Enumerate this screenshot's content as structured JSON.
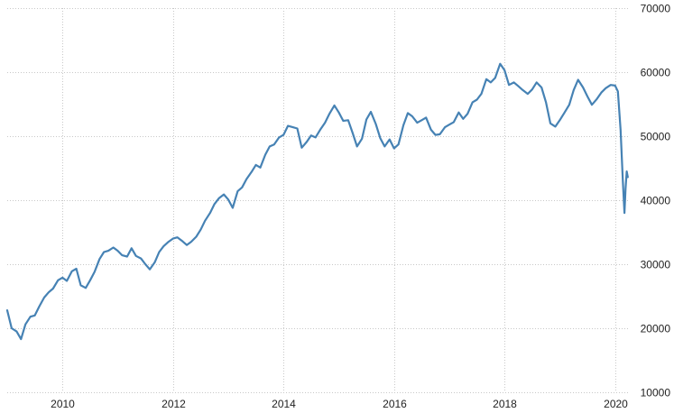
{
  "chart_data": {
    "type": "line",
    "title": "",
    "xlabel": "",
    "ylabel": "",
    "grid": true,
    "legend": "none",
    "y_axis_side": "right",
    "x_type": "year",
    "xlim": [
      2009.0,
      2020.25
    ],
    "ylim": [
      10000,
      70000
    ],
    "x_ticks": [
      2010,
      2012,
      2014,
      2016,
      2018,
      2020
    ],
    "x_tick_labels": [
      "2010",
      "2012",
      "2014",
      "2016",
      "2018",
      "2020"
    ],
    "y_ticks": [
      10000,
      20000,
      30000,
      40000,
      50000,
      60000,
      70000
    ],
    "y_tick_labels": [
      "10000",
      "20000",
      "30000",
      "40000",
      "50000",
      "60000",
      "70000"
    ],
    "colors": {
      "line": "#4682b4",
      "grid": "#c8c8c8",
      "axis_text": "#222222"
    },
    "series": [
      {
        "x": [
          2009.0,
          2009.08,
          2009.17,
          2009.25,
          2009.33,
          2009.42,
          2009.5,
          2009.58,
          2009.67,
          2009.75,
          2009.83,
          2009.92,
          2010.0,
          2010.08,
          2010.17,
          2010.25,
          2010.33,
          2010.42,
          2010.5,
          2010.58,
          2010.67,
          2010.75,
          2010.83,
          2010.92,
          2011.0,
          2011.08,
          2011.17,
          2011.25,
          2011.33,
          2011.42,
          2011.5,
          2011.58,
          2011.67,
          2011.75,
          2011.83,
          2011.92,
          2012.0,
          2012.08,
          2012.17,
          2012.25,
          2012.33,
          2012.42,
          2012.5,
          2012.58,
          2012.67,
          2012.75,
          2012.83,
          2012.92,
          2013.0,
          2013.08,
          2013.17,
          2013.25,
          2013.33,
          2013.42,
          2013.5,
          2013.58,
          2013.67,
          2013.75,
          2013.83,
          2013.92,
          2014.0,
          2014.08,
          2014.17,
          2014.25,
          2014.33,
          2014.42,
          2014.5,
          2014.58,
          2014.67,
          2014.75,
          2014.83,
          2014.92,
          2015.0,
          2015.08,
          2015.17,
          2015.25,
          2015.33,
          2015.42,
          2015.5,
          2015.58,
          2015.67,
          2015.75,
          2015.83,
          2015.92,
          2016.0,
          2016.08,
          2016.17,
          2016.25,
          2016.33,
          2016.42,
          2016.5,
          2016.58,
          2016.67,
          2016.75,
          2016.83,
          2016.92,
          2017.0,
          2017.08,
          2017.17,
          2017.25,
          2017.33,
          2017.42,
          2017.5,
          2017.58,
          2017.67,
          2017.75,
          2017.83,
          2017.92,
          2018.0,
          2018.08,
          2018.17,
          2018.25,
          2018.33,
          2018.42,
          2018.5,
          2018.58,
          2018.67,
          2018.75,
          2018.83,
          2018.92,
          2019.0,
          2019.08,
          2019.17,
          2019.25,
          2019.33,
          2019.42,
          2019.5,
          2019.58,
          2019.67,
          2019.75,
          2019.83,
          2019.92,
          2020.0,
          2020.05,
          2020.1,
          2020.14,
          2020.17,
          2020.19,
          2020.21,
          2020.23
        ],
        "values": [
          22800,
          20000,
          19500,
          18300,
          20600,
          21800,
          22000,
          23400,
          24800,
          25600,
          26200,
          27500,
          27900,
          27400,
          28900,
          29300,
          26700,
          26300,
          27500,
          28800,
          30800,
          31900,
          32100,
          32600,
          32100,
          31400,
          31200,
          32500,
          31300,
          30900,
          30000,
          29200,
          30300,
          31900,
          32800,
          33500,
          34000,
          34200,
          33600,
          33000,
          33500,
          34300,
          35400,
          36800,
          38000,
          39400,
          40300,
          40900,
          40100,
          38800,
          41400,
          42000,
          43300,
          44400,
          45500,
          45100,
          47100,
          48400,
          48700,
          49800,
          50200,
          51600,
          51400,
          51200,
          48200,
          49100,
          50100,
          49800,
          51100,
          52100,
          53500,
          54800,
          53700,
          52400,
          52500,
          50500,
          48400,
          49600,
          52600,
          53800,
          51900,
          49700,
          48400,
          49500,
          48100,
          48700,
          51700,
          53600,
          53100,
          52100,
          52500,
          52900,
          51000,
          50200,
          50300,
          51400,
          51800,
          52200,
          53700,
          52700,
          53500,
          55300,
          55700,
          56600,
          58900,
          58400,
          59100,
          61300,
          60300,
          58000,
          58400,
          57800,
          57200,
          56600,
          57300,
          58400,
          57600,
          55300,
          52000,
          51500,
          52500,
          53600,
          54900,
          57200,
          58800,
          57600,
          56200,
          54900,
          55800,
          56800,
          57500,
          58000,
          57900,
          57000,
          51000,
          43000,
          38000,
          41800,
          44500,
          43600
        ]
      }
    ]
  }
}
